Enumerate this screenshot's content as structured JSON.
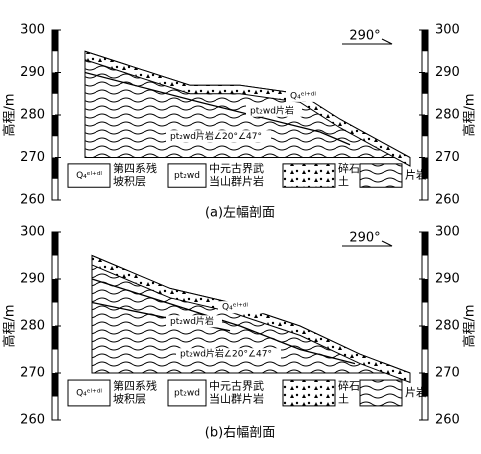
{
  "panels": [
    {
      "y_axis_label": "高程/m",
      "yticks": [
        300,
        290,
        280,
        270,
        260
      ],
      "direction": "290°",
      "caption": "(a)左幅剖面",
      "annotations": [
        "Q₄ᵉˡ⁺ᵈˡ",
        "pt₂wd片岩",
        "pt₂wd片岩∠20°∠47°"
      ],
      "legend": [
        {
          "symbol": "Q₄ᵉˡ⁺ᵈˡ",
          "label": [
            "第四系残",
            "坡积层"
          ]
        },
        {
          "symbol": "pt₂wd",
          "label": [
            "中元古界武",
            "当山群片岩"
          ]
        },
        {
          "label": [
            "碎石",
            "土"
          ]
        },
        {
          "label": [
            "片岩"
          ]
        }
      ]
    },
    {
      "y_axis_label": "高程/m",
      "yticks": [
        300,
        290,
        280,
        270,
        260
      ],
      "direction": "290°",
      "caption": "(b)右幅剖面",
      "annotations": [
        "pt₂wd片岩",
        "Q₄ᵉˡ⁺ᵈˡ",
        "pt₂wd片岩∠20°∠47°"
      ],
      "legend": [
        {
          "symbol": "Q₄ᵉˡ⁺ᵈˡ",
          "label": [
            "第四系残",
            "坡积层"
          ]
        },
        {
          "symbol": "pt₂wd",
          "label": [
            "中元古界武",
            "当山群片岩"
          ]
        },
        {
          "label": [
            "碎石",
            "土"
          ]
        },
        {
          "label": [
            "片岩"
          ]
        }
      ]
    }
  ]
}
